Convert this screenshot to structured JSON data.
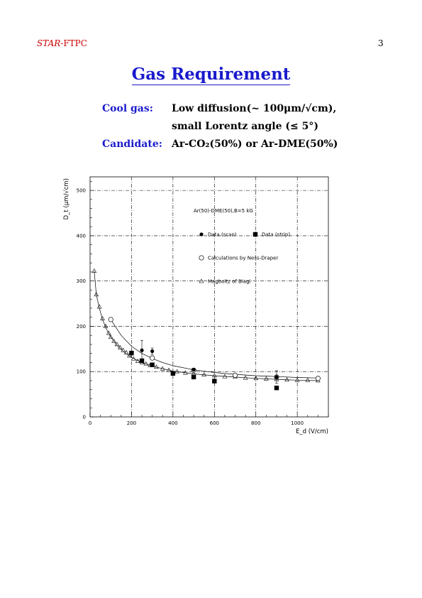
{
  "header": {
    "left_italic": "STAR",
    "left_rest": "-FTPC",
    "page_number": "3"
  },
  "title": "Gas Requirement",
  "requirements": [
    {
      "label": "Cool gas:",
      "lines": [
        "Low diffusion(~ 100μm/√cm),",
        "small Lorentz angle (≤ 5°)"
      ]
    },
    {
      "label": "Candidate:",
      "lines": [
        "Ar-CO₂(50%) or Ar-DME(50%)"
      ]
    }
  ],
  "chart_data": {
    "type": "scatter",
    "title": "Ar(50)-DME(50),B=5 kG",
    "xlabel": "E_d (V/cm)",
    "ylabel": "D_t (μm/√cm)",
    "xlim": [
      0,
      1150
    ],
    "ylim": [
      0,
      530
    ],
    "xticks": [
      0,
      200,
      400,
      600,
      800,
      1000
    ],
    "yticks": [
      0,
      100,
      200,
      300,
      400,
      500
    ],
    "grid": true,
    "legend_position": "top-right",
    "series": [
      {
        "name": "Data (scan)",
        "marker": "filled-circle",
        "points": [
          [
            250,
            147,
            22
          ],
          [
            300,
            145,
            7
          ],
          [
            500,
            104,
            0
          ],
          [
            900,
            88,
            14
          ]
        ]
      },
      {
        "name": "Data (strip)",
        "marker": "filled-square",
        "points": [
          [
            200,
            141
          ],
          [
            250,
            124
          ],
          [
            300,
            115
          ],
          [
            400,
            96
          ],
          [
            500,
            88
          ],
          [
            600,
            79
          ],
          [
            900,
            64
          ]
        ]
      },
      {
        "name": "Calculations by Ness-Draper",
        "marker": "open-circle",
        "points": [
          [
            100,
            215
          ],
          [
            300,
            130
          ],
          [
            500,
            103
          ],
          [
            700,
            92
          ],
          [
            900,
            88
          ],
          [
            1100,
            85
          ]
        ]
      },
      {
        "name": "Magboltz of Biagi",
        "marker": "open-triangle",
        "points": [
          [
            20,
            322
          ],
          [
            30,
            270
          ],
          [
            45,
            243
          ],
          [
            60,
            217
          ],
          [
            75,
            200
          ],
          [
            90,
            185
          ],
          [
            100,
            176
          ],
          [
            115,
            167
          ],
          [
            130,
            160
          ],
          [
            145,
            153
          ],
          [
            160,
            147
          ],
          [
            175,
            142
          ],
          [
            190,
            135
          ],
          [
            210,
            128
          ],
          [
            230,
            123
          ],
          [
            250,
            120
          ],
          [
            270,
            117
          ],
          [
            290,
            114
          ],
          [
            320,
            110
          ],
          [
            350,
            106
          ],
          [
            380,
            103
          ],
          [
            420,
            100
          ],
          [
            460,
            97
          ],
          [
            500,
            95
          ],
          [
            550,
            93
          ],
          [
            600,
            91
          ],
          [
            650,
            89
          ],
          [
            700,
            88
          ],
          [
            750,
            86
          ],
          [
            800,
            85
          ],
          [
            850,
            84
          ],
          [
            900,
            83
          ],
          [
            950,
            82
          ],
          [
            1000,
            81
          ],
          [
            1050,
            81
          ],
          [
            1100,
            80
          ]
        ]
      }
    ],
    "curves": [
      {
        "name": "fit-to-calculations",
        "x": [
          100,
          150,
          200,
          250,
          300,
          350,
          400,
          500,
          600,
          700,
          800,
          900,
          1000,
          1100
        ],
        "y": [
          215,
          180,
          156,
          140,
          129,
          120,
          113,
          104,
          98,
          94,
          91,
          89,
          87,
          86
        ]
      },
      {
        "name": "fit-to-magboltz",
        "x": [
          20,
          30,
          45,
          60,
          80,
          100,
          130,
          160,
          200,
          250,
          300,
          400,
          500,
          600,
          700,
          800,
          900,
          1000,
          1100
        ],
        "y": [
          322,
          270,
          240,
          215,
          193,
          176,
          158,
          145,
          131,
          120,
          112,
          101,
          95,
          91,
          88,
          85,
          83,
          81,
          80
        ]
      }
    ]
  }
}
